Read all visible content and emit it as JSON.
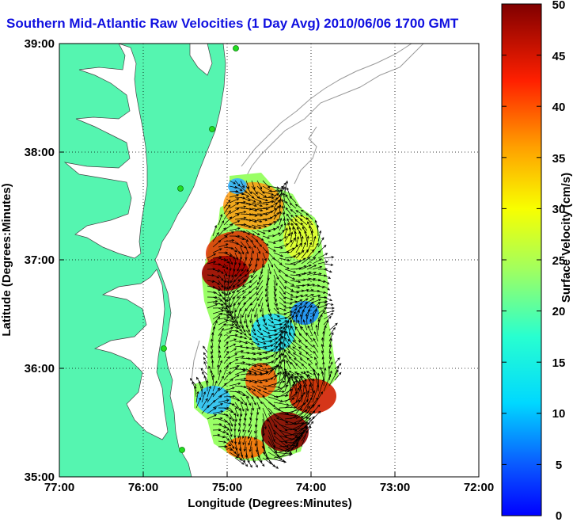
{
  "title": "Southern Mid-Atlantic Raw Velocities (1 Day Avg) 2010/06/06 1700 GMT",
  "x_axis": {
    "label": "Longitude (Degrees:Minutes)",
    "ticks": [
      "77:00",
      "76:00",
      "75:00",
      "74:00",
      "73:00",
      "72:00"
    ]
  },
  "y_axis": {
    "label": "Latitude (Degrees:Minutes)",
    "ticks": [
      "39:00",
      "38:00",
      "37:00",
      "36:00",
      "35:00"
    ]
  },
  "colorbar": {
    "label": "Surface Velocity (cm/s)",
    "ticks": [
      "50",
      "45",
      "40",
      "35",
      "30",
      "25",
      "20",
      "15",
      "10",
      "5",
      "0"
    ],
    "range": [
      0,
      50
    ],
    "colormap": "jet"
  },
  "map": {
    "lon_range": [
      -77,
      -72
    ],
    "lat_range": [
      35,
      39
    ],
    "land_color": "#55f5b0",
    "grid": "dotted",
    "has_bathymetry_contours": true,
    "has_velocity_vectors": true
  }
}
